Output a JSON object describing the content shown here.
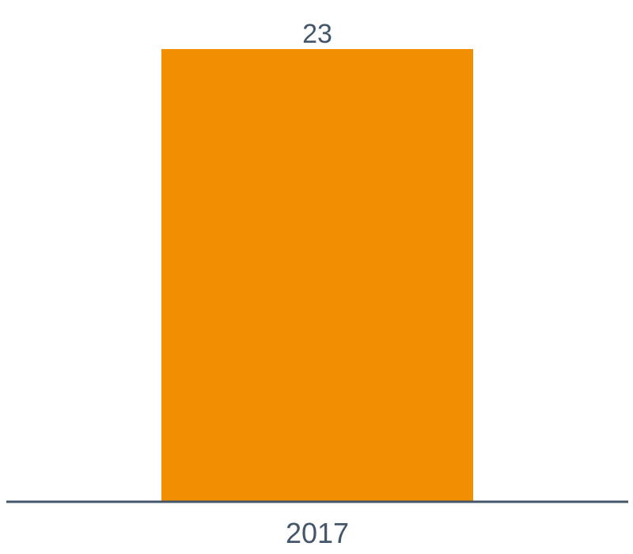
{
  "chart_data": {
    "type": "bar",
    "categories": [
      "2017"
    ],
    "values": [
      23
    ],
    "value_labels": [
      "23"
    ],
    "title": "",
    "xlabel": "",
    "ylabel": "",
    "ylim": [
      0,
      23
    ],
    "grid": false,
    "legend": "none",
    "colors": {
      "bar": "#f18f01",
      "axis": "#44566a",
      "text": "#44566a"
    }
  }
}
